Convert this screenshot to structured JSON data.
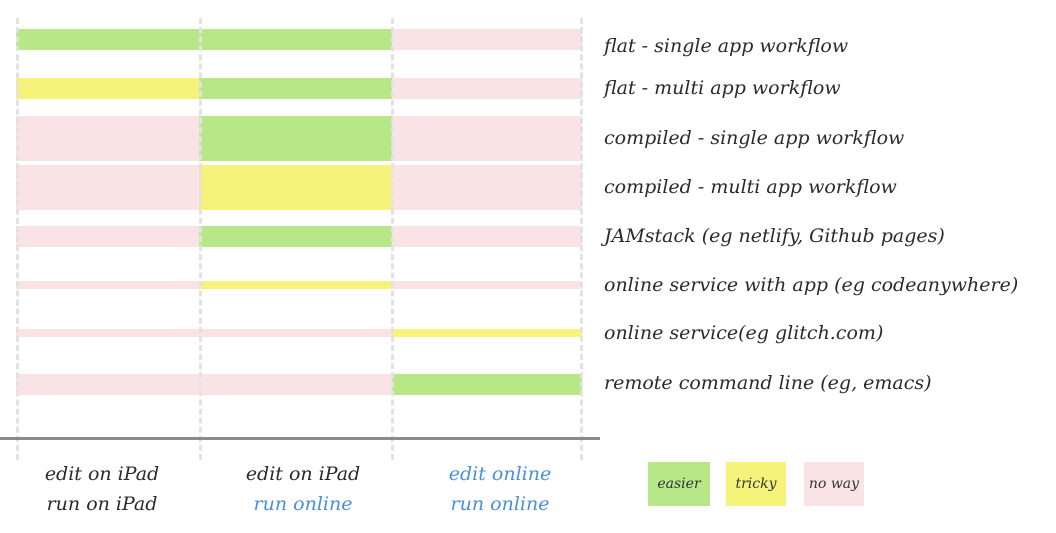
{
  "colors": {
    "easier": "#b8e788",
    "tricky": "#f6f37a",
    "no_way": "#fae3e5",
    "local_text": "#2a2a2a",
    "online_text": "#4a8fdc"
  },
  "columns": [
    {
      "line1": "edit on iPad",
      "line2": "run on iPad",
      "line1_online": false,
      "line2_online": false
    },
    {
      "line1": "edit on iPad",
      "line2": "run online",
      "line1_online": false,
      "line2_online": true
    },
    {
      "line1": "edit online",
      "line2": "run online",
      "line1_online": true,
      "line2_online": true
    }
  ],
  "rows": [
    {
      "label": "flat - single app workflow",
      "cells": [
        "easier",
        "easier",
        "no_way"
      ],
      "thickness": "medium"
    },
    {
      "label": "flat - multi app workflow",
      "cells": [
        "tricky",
        "easier",
        "no_way"
      ],
      "thickness": "medium"
    },
    {
      "label": "compiled - single app workflow",
      "cells": [
        "no_way",
        "easier",
        "no_way"
      ],
      "thickness": "thick"
    },
    {
      "label": "compiled - multi app workflow",
      "cells": [
        "no_way",
        "tricky",
        "no_way"
      ],
      "thickness": "thick"
    },
    {
      "label": "JAMstack (eg netlify, Github pages)",
      "cells": [
        "no_way",
        "easier",
        "no_way"
      ],
      "thickness": "medium"
    },
    {
      "label": "online service with app (eg codeanywhere)",
      "cells": [
        "no_way",
        "tricky",
        "no_way"
      ],
      "thickness": "thin"
    },
    {
      "label": "online service(eg glitch.com)",
      "cells": [
        "no_way",
        "no_way",
        "tricky"
      ],
      "thickness": "thin"
    },
    {
      "label": "remote command line (eg, emacs)",
      "cells": [
        "no_way",
        "no_way",
        "easier"
      ],
      "thickness": "medium"
    }
  ],
  "legend": [
    {
      "key": "easier",
      "label": "easier"
    },
    {
      "key": "tricky",
      "label": "tricky"
    },
    {
      "key": "no_way",
      "label": "no way"
    }
  ]
}
